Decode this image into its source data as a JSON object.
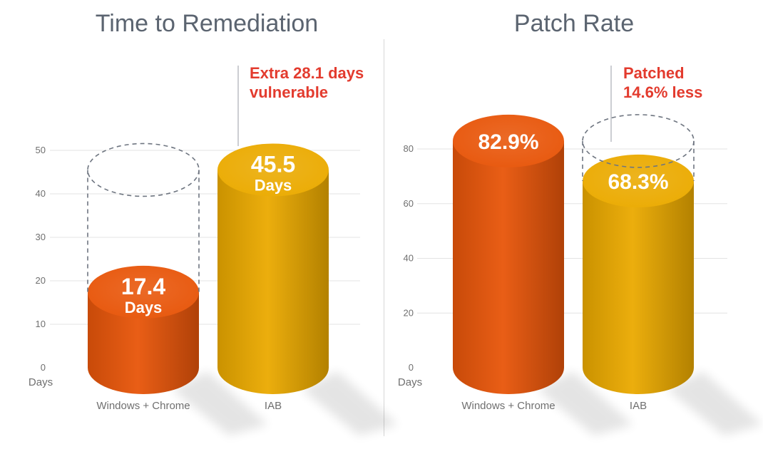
{
  "chart_data": [
    {
      "type": "bar",
      "title": "Time to Remediation",
      "unit_label": "Days",
      "categories": [
        "Windows + Chrome",
        "IAB"
      ],
      "values": [
        17.4,
        45.5
      ],
      "value_labels": [
        [
          "17.4",
          "Days"
        ],
        [
          "45.5",
          "Days"
        ]
      ],
      "ylim": [
        0,
        50
      ],
      "yticks": [
        0,
        10,
        20,
        30,
        40,
        50
      ],
      "yticklabels": [
        "0",
        "10",
        "20",
        "30",
        "40",
        "50"
      ],
      "grid": true,
      "colors": [
        "#E8560A",
        "#EBAA00"
      ],
      "annotation": {
        "lines": [
          "Extra 28.1 days",
          "vulnerable"
        ],
        "ghost_value": 45.5,
        "ghost_bar": 0
      }
    },
    {
      "type": "bar",
      "title": "Patch Rate",
      "unit_label": "Days",
      "categories": [
        "Windows + Chrome",
        "IAB"
      ],
      "values": [
        82.9,
        68.3
      ],
      "value_labels": [
        [
          "82.9%"
        ],
        [
          "68.3%"
        ]
      ],
      "ylim": [
        0,
        80
      ],
      "yticks": [
        0,
        20,
        40,
        60,
        80
      ],
      "yticklabels": [
        "0",
        "20",
        "40",
        "60",
        "80"
      ],
      "grid": true,
      "colors": [
        "#E8560A",
        "#EBAA00"
      ],
      "annotation": {
        "lines": [
          "Patched",
          "14.6% less"
        ],
        "ghost_value": 82.9,
        "ghost_bar": 1
      }
    }
  ]
}
